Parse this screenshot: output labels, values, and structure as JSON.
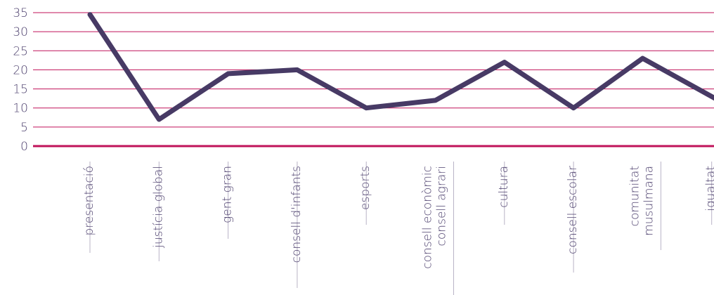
{
  "chart_data": {
    "type": "line",
    "categories": [
      [
        "presentació"
      ],
      [
        "justícia global"
      ],
      [
        "gent gran"
      ],
      [
        "consell d'infants"
      ],
      [
        "esports"
      ],
      [
        "consell econòmic",
        "consell agrari"
      ],
      [
        "cultura"
      ],
      [
        "consell escolar"
      ],
      [
        "comunitat",
        "musulmana"
      ],
      [
        "igualtat"
      ]
    ],
    "series": [
      {
        "values": [
          34.5,
          7,
          19,
          20,
          10,
          12,
          22,
          10,
          23,
          13
        ]
      }
    ],
    "yticks": [
      "0",
      "5",
      "10",
      "15",
      "20",
      "25",
      "30",
      "35"
    ],
    "ylim": [
      0,
      35
    ],
    "grid": true,
    "colors": {
      "line": "#473a65",
      "grid": "#c0135a",
      "axis": "#c0135a",
      "text": "#4a3d6b",
      "separator": "#b9b3c6"
    }
  }
}
